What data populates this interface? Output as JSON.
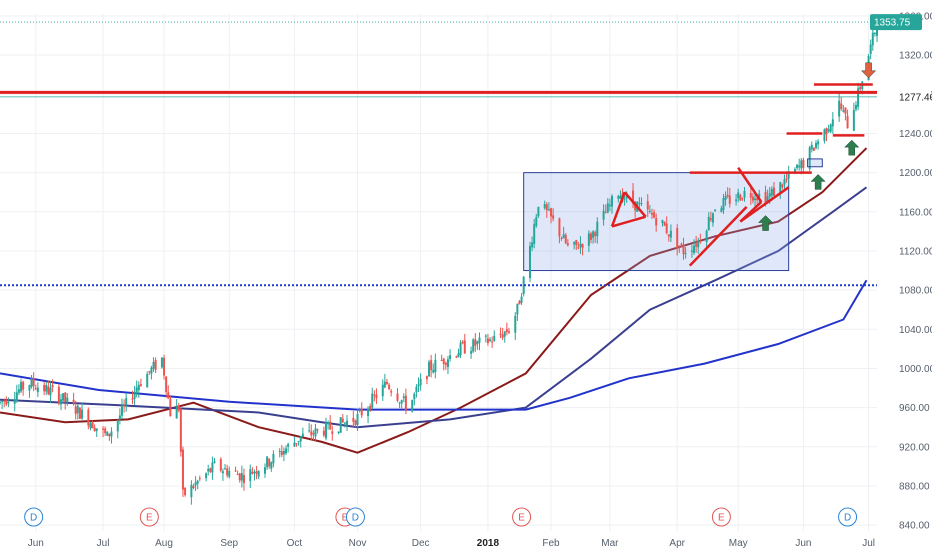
{
  "chart_data": {
    "type": "candlestick",
    "title": "",
    "ylim": [
      834,
      1362
    ],
    "xlim": [
      "2017-05-15",
      "2018-07-06"
    ],
    "price_axis": {
      "ticks": [
        840,
        880,
        920,
        960,
        1000,
        1040,
        1080,
        1120,
        1160,
        1200,
        1240,
        1280,
        1320,
        1360
      ],
      "tick_labels": [
        "840.00",
        "880.00",
        "920.00",
        "960.00",
        "1000.00",
        "1040.00",
        "1080.00",
        "1120.00",
        "1160.00",
        "1200.00",
        "1240.00",
        "1280.00",
        "1320.00",
        "1360.00"
      ]
    },
    "time_axis": {
      "ticks": [
        {
          "date": "2017-06-01",
          "label": "Jun",
          "year": false
        },
        {
          "date": "2017-07-03",
          "label": "Jul",
          "year": false
        },
        {
          "date": "2017-08-01",
          "label": "Aug",
          "year": false
        },
        {
          "date": "2017-09-01",
          "label": "Sep",
          "year": false
        },
        {
          "date": "2017-10-02",
          "label": "Oct",
          "year": false
        },
        {
          "date": "2017-11-01",
          "label": "Nov",
          "year": false
        },
        {
          "date": "2017-12-01",
          "label": "Dec",
          "year": false
        },
        {
          "date": "2018-01-02",
          "label": "2018",
          "year": true
        },
        {
          "date": "2018-02-01",
          "label": "Feb",
          "year": false
        },
        {
          "date": "2018-03-01",
          "label": "Mar",
          "year": false
        },
        {
          "date": "2018-04-02",
          "label": "Apr",
          "year": false
        },
        {
          "date": "2018-05-01",
          "label": "May",
          "year": false
        },
        {
          "date": "2018-06-01",
          "label": "Jun",
          "year": false
        },
        {
          "date": "2018-07-02",
          "label": "Jul",
          "year": false
        }
      ]
    },
    "price_path": [
      [
        "2017-05-15",
        965
      ],
      [
        "2017-05-29",
        985
      ],
      [
        "2017-06-10",
        975
      ],
      [
        "2017-06-25",
        950
      ],
      [
        "2017-07-05",
        930
      ],
      [
        "2017-07-20",
        985
      ],
      [
        "2017-07-31",
        1010
      ],
      [
        "2017-08-04",
        955
      ],
      [
        "2017-08-08",
        960
      ],
      [
        "2017-08-10",
        870
      ],
      [
        "2017-08-25",
        900
      ],
      [
        "2017-09-08",
        890
      ],
      [
        "2017-09-20",
        905
      ],
      [
        "2017-10-05",
        930
      ],
      [
        "2017-10-20",
        940
      ],
      [
        "2017-11-01",
        950
      ],
      [
        "2017-11-15",
        985
      ],
      [
        "2017-11-25",
        960
      ],
      [
        "2017-12-05",
        1000
      ],
      [
        "2017-12-20",
        1020
      ],
      [
        "2018-01-05",
        1030
      ],
      [
        "2018-01-12",
        1040
      ],
      [
        "2018-01-16",
        1060
      ],
      [
        "2018-01-20",
        1100
      ],
      [
        "2018-01-26",
        1170
      ],
      [
        "2018-02-02",
        1150
      ],
      [
        "2018-02-10",
        1120
      ],
      [
        "2018-02-20",
        1135
      ],
      [
        "2018-03-05",
        1180
      ],
      [
        "2018-03-15",
        1165
      ],
      [
        "2018-03-25",
        1150
      ],
      [
        "2018-04-05",
        1120
      ],
      [
        "2018-04-12",
        1130
      ],
      [
        "2018-04-20",
        1165
      ],
      [
        "2018-05-05",
        1180
      ],
      [
        "2018-05-15",
        1175
      ],
      [
        "2018-05-25",
        1195
      ],
      [
        "2018-06-01",
        1210
      ],
      [
        "2018-06-07",
        1230
      ],
      [
        "2018-06-12",
        1245
      ],
      [
        "2018-06-18",
        1270
      ],
      [
        "2018-06-22",
        1250
      ],
      [
        "2018-06-27",
        1280
      ],
      [
        "2018-07-02",
        1320
      ],
      [
        "2018-07-06",
        1353
      ]
    ],
    "moving_averages": [
      {
        "color": "#8b1a1a",
        "points": [
          [
            "2017-05-15",
            955
          ],
          [
            "2017-06-15",
            945
          ],
          [
            "2017-07-15",
            948
          ],
          [
            "2017-08-15",
            965
          ],
          [
            "2017-09-15",
            940
          ],
          [
            "2017-10-15",
            925
          ],
          [
            "2017-11-01",
            914
          ],
          [
            "2017-11-25",
            935
          ],
          [
            "2017-12-20",
            960
          ],
          [
            "2018-01-20",
            995
          ],
          [
            "2018-02-20",
            1075
          ],
          [
            "2018-03-20",
            1115
          ],
          [
            "2018-04-20",
            1135
          ],
          [
            "2018-05-20",
            1150
          ],
          [
            "2018-06-10",
            1180
          ],
          [
            "2018-07-01",
            1225
          ]
        ]
      },
      {
        "color": "#3b3f8f",
        "points": [
          [
            "2017-05-15",
            968
          ],
          [
            "2017-07-15",
            962
          ],
          [
            "2017-09-15",
            955
          ],
          [
            "2017-10-15",
            945
          ],
          [
            "2017-11-01",
            940
          ],
          [
            "2017-12-15",
            948
          ],
          [
            "2018-01-20",
            960
          ],
          [
            "2018-02-20",
            1010
          ],
          [
            "2018-03-20",
            1060
          ],
          [
            "2018-04-20",
            1090
          ],
          [
            "2018-05-20",
            1120
          ],
          [
            "2018-06-15",
            1160
          ],
          [
            "2018-07-01",
            1185
          ]
        ]
      },
      {
        "color": "#2233cc",
        "points": [
          [
            "2017-05-15",
            995
          ],
          [
            "2017-07-01",
            978
          ],
          [
            "2017-09-01",
            966
          ],
          [
            "2017-11-01",
            958
          ],
          [
            "2017-12-01",
            958
          ],
          [
            "2018-01-20",
            958
          ],
          [
            "2018-02-10",
            970
          ],
          [
            "2018-03-10",
            990
          ],
          [
            "2018-04-15",
            1005
          ],
          [
            "2018-05-20",
            1025
          ],
          [
            "2018-06-20",
            1050
          ],
          [
            "2018-07-01",
            1090
          ]
        ]
      }
    ],
    "annotations": {
      "horizontal_lines": [
        {
          "y": 1085,
          "color": "#1a3fcc",
          "style": "dotted",
          "label": ""
        },
        {
          "y": 1282,
          "color": "#e02020",
          "style": "solid",
          "label": ""
        }
      ],
      "box": {
        "x0": "2018-01-19",
        "x1": "2018-05-25",
        "y0": 1100,
        "y1": 1200
      },
      "last_price": {
        "value": "1353.75",
        "color": "#26a69a"
      },
      "price_marker": {
        "value": "1277.40",
        "color": "#ffffff"
      },
      "event_badges": [
        {
          "date": "2017-05-31",
          "letter": "D",
          "color": "#2a84d6"
        },
        {
          "date": "2017-07-25",
          "letter": "E",
          "color": "#e05555"
        },
        {
          "date": "2017-10-26",
          "letter": "E",
          "color": "#e05555"
        },
        {
          "date": "2017-10-31",
          "letter": "D",
          "color": "#2a84d6"
        },
        {
          "date": "2018-01-18",
          "letter": "E",
          "color": "#e05555"
        },
        {
          "date": "2018-04-23",
          "letter": "E",
          "color": "#e05555"
        },
        {
          "date": "2018-06-22",
          "letter": "D",
          "color": "#2a84d6"
        }
      ]
    }
  }
}
